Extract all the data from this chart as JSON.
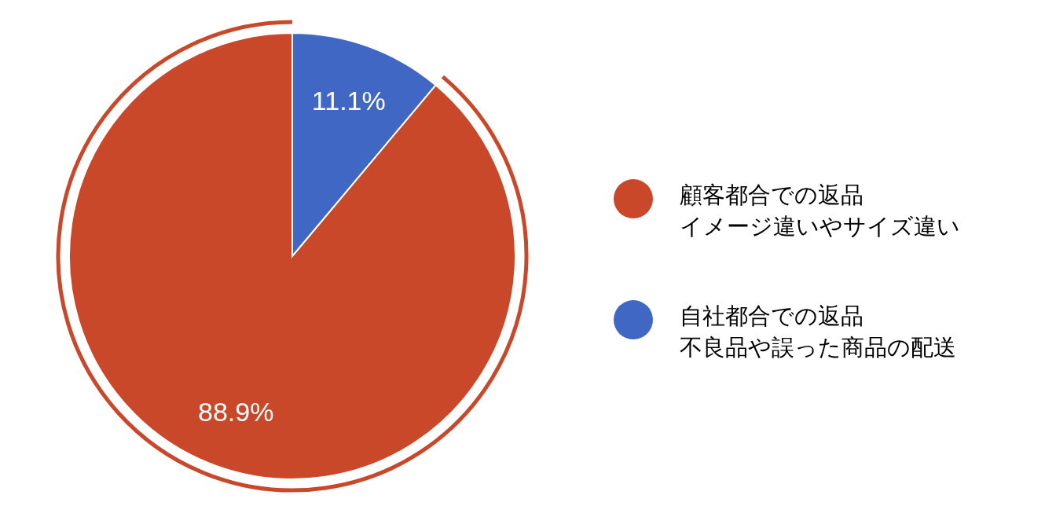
{
  "chart_data": {
    "type": "pie",
    "categories": [
      "顧客都合での返品イメージ違いやサイズ違い",
      "自社都合での返品不良品や誤った商品の配送"
    ],
    "values": [
      88.9,
      11.1
    ],
    "colors": [
      "#c9482a",
      "#4167c5"
    ],
    "value_labels": [
      "88.9%",
      "11.1%"
    ],
    "legend": "right"
  }
}
